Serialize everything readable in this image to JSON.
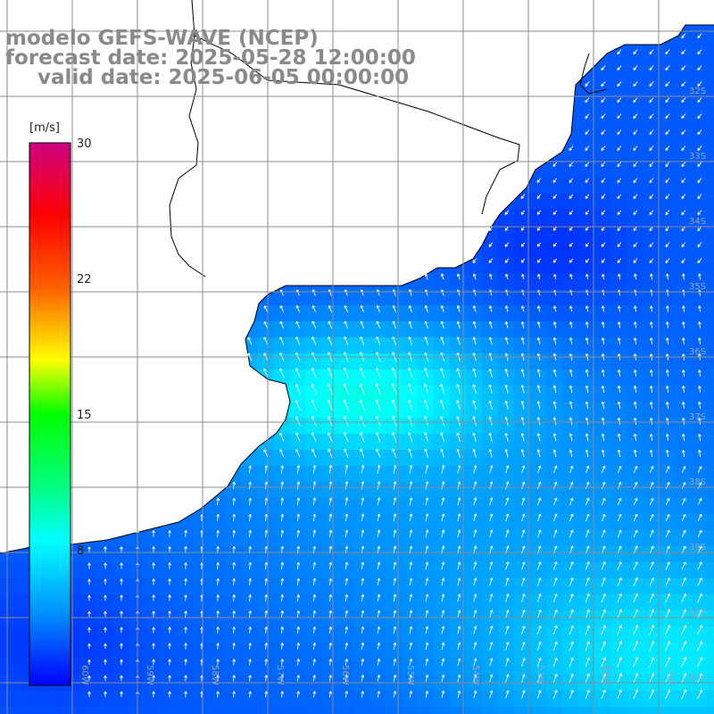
{
  "title": {
    "line1": "modelo GEFS-WAVE (NCEP)",
    "line2": "forecast date: 2025-05-28 12:00:00",
    "line3": "valid date: 2025-06-05 00:00:00"
  },
  "colorbar": {
    "unit": "[m/s]",
    "ticks": [
      "30",
      "22",
      "15",
      "8"
    ],
    "stops": [
      {
        "v": 0,
        "c": "#0000ff"
      },
      {
        "v": 4,
        "c": "#0090ff"
      },
      {
        "v": 8,
        "c": "#00ffff"
      },
      {
        "v": 11,
        "c": "#00ff80"
      },
      {
        "v": 15,
        "c": "#00ff00"
      },
      {
        "v": 18,
        "c": "#ffff00"
      },
      {
        "v": 22,
        "c": "#ff6000"
      },
      {
        "v": 26,
        "c": "#ff0000"
      },
      {
        "v": 30,
        "c": "#cc0080"
      }
    ]
  },
  "grid": {
    "lat_labels": [
      "32S",
      "33S",
      "34S",
      "35S",
      "36S",
      "37S",
      "38S",
      "39S",
      "40S",
      "41S"
    ],
    "lon_labels": [
      "60W",
      "59W",
      "58W",
      "57W",
      "56W",
      "55W",
      "54W",
      "53W",
      "52W",
      "51W"
    ]
  },
  "colors": {
    "land": "#ffffff",
    "coast": "#000000",
    "grid": "#8c8c8c",
    "arrow": "#ffffff"
  }
}
